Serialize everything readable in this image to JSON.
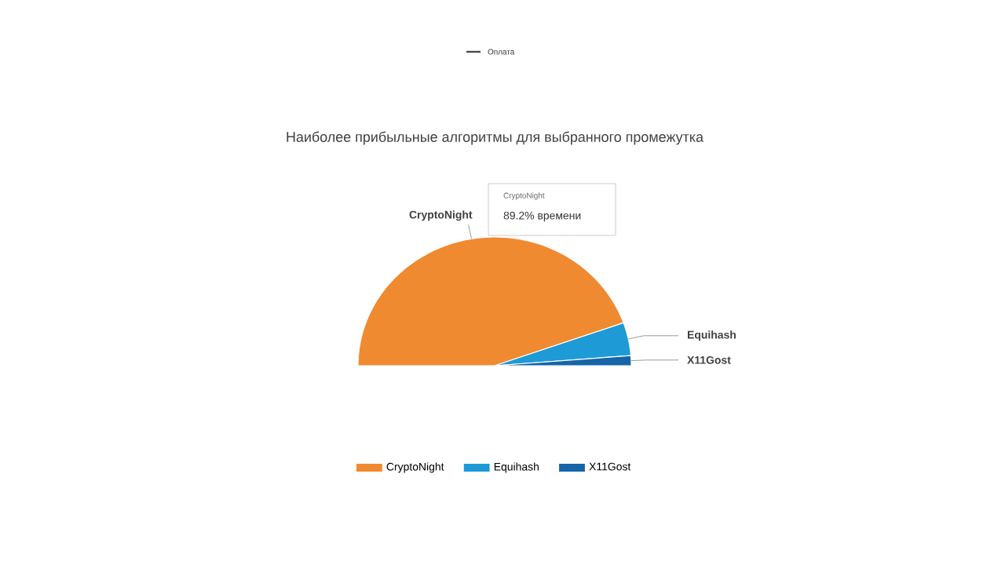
{
  "chart_data": {
    "type": "pie",
    "title": "Наиболее прибыльные алгоритмы для выбранного промежутка",
    "categories": [
      "CryptoNight",
      "Equihash",
      "X11Gost"
    ],
    "values": [
      89.2,
      8.3,
      2.5
    ],
    "colors": [
      "#f08a30",
      "#1e9ad6",
      "#1565a8"
    ],
    "legend": "bottom",
    "annotations": [
      "Оплата",
      "CryptoNight",
      "89.2% времени"
    ]
  }
}
